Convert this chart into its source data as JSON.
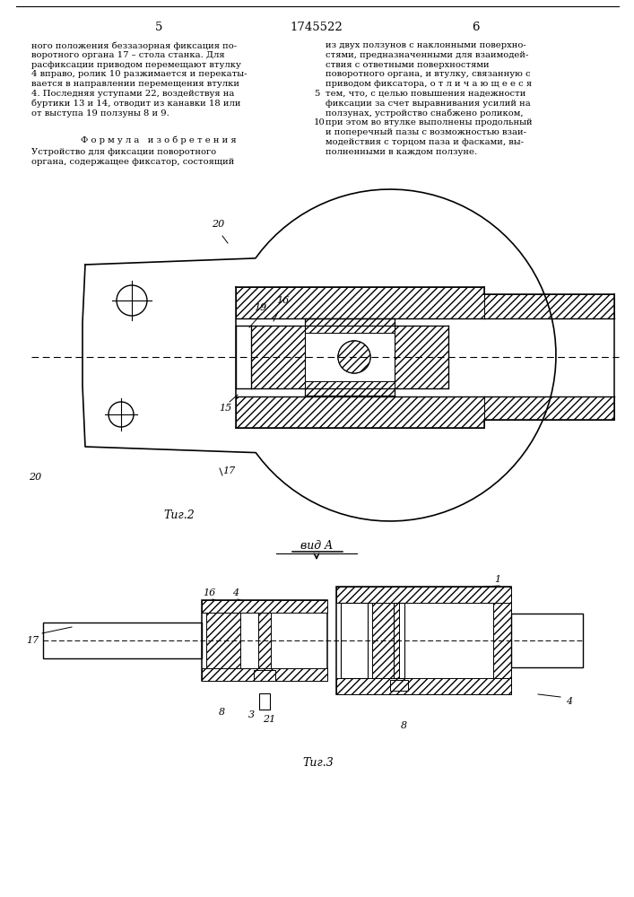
{
  "page_left": "5",
  "page_center": "1745522",
  "page_right": "6",
  "text_left_lines": [
    "ного положения беззазорная фиксация по-",
    "воротного органа 17 – стола станка. Для",
    "расфиксации приводом перемещают втулку",
    "4 вправо, ролик 10 разжимается и перекаты-",
    "вается в направлении перемещения втулки",
    "4. Последняя уступами 22, воздействуя на",
    "буртики 13 и 14, отводит из канавки 18 или",
    "от выступа 19 ползуны 8 и 9."
  ],
  "formula_title": "Ф о р м у л а   и з о б р е т е н и я",
  "formula_lines": [
    "Устройство для фиксации поворотного",
    "органа, содержащее фиксатор, состоящий"
  ],
  "text_right_lines": [
    "из двух ползунов с наклонными поверхно-",
    "стями, предназначенными для взаимодей-",
    "ствия с ответными поверхностями",
    "поворотного органа, и втулку, связанную с",
    "приводом фиксатора, о т л и ч а ю щ е е с я",
    "тем, что, с целью повышения надежности",
    "фиксации за счет выравнивания усилий на",
    "ползунах, устройство снабжено роликом,",
    "при этом во втулке выполнены продольный",
    "и поперечный пазы с возможностью взаи-",
    "модействия с торцом паза и фасками, вы-",
    "полненными в каждом ползуне."
  ],
  "margin_5": "5",
  "margin_10": "10",
  "fig2_caption": "Τиг.2",
  "fig3_caption": "Τиг.3",
  "vida_label": "вид A"
}
